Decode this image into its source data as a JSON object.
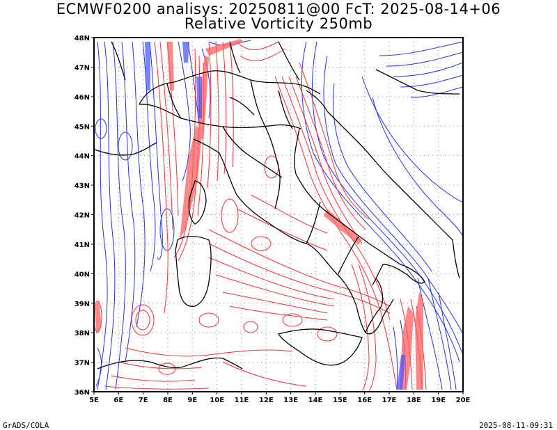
{
  "title_line1": "ECMWF0200 analisys: 20250811@00 FcT: 2025-08-14+06",
  "title_line2": "Relative Vorticity 250mb",
  "footer_left": "GrADS/COLA",
  "footer_right": "2025-08-11-09:31",
  "map": {
    "lon_range": [
      5,
      20
    ],
    "lat_range": [
      36,
      48
    ],
    "lon_labels": [
      "5E",
      "6E",
      "7E",
      "8E",
      "9E",
      "10E",
      "11E",
      "12E",
      "13E",
      "14E",
      "15E",
      "16E",
      "17E",
      "18E",
      "19E",
      "20E"
    ],
    "lat_labels": [
      "36N",
      "37N",
      "38N",
      "39N",
      "40N",
      "41N",
      "42N",
      "43N",
      "44N",
      "45N",
      "46N",
      "47N",
      "48N"
    ],
    "grid": "dotted",
    "colors": {
      "positive": "#ff3030",
      "negative": "#2030ff",
      "coast": "#000000",
      "grid": "#808080"
    }
  }
}
